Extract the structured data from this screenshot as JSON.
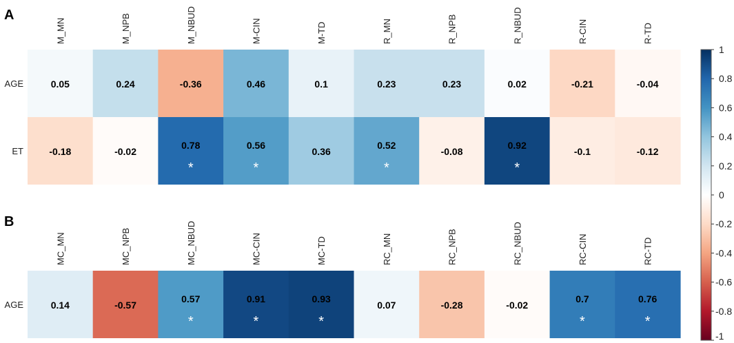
{
  "chart_data": [
    {
      "type": "heatmap",
      "panel_label": "A",
      "columns": [
        "M_MN",
        "M_NPB",
        "M_NBUD",
        "M-CIN",
        "M-TD",
        "R_MN",
        "R_NPB",
        "R_NBUD",
        "R-CIN",
        "R-TD"
      ],
      "rows": [
        {
          "label": "AGE",
          "values": [
            0.05,
            0.24,
            -0.36,
            0.46,
            0.1,
            0.23,
            0.23,
            0.02,
            -0.21,
            -0.04
          ],
          "significant": [
            false,
            false,
            false,
            false,
            false,
            false,
            false,
            false,
            false,
            false
          ]
        },
        {
          "label": "ET",
          "values": [
            -0.18,
            -0.02,
            0.78,
            0.56,
            0.36,
            0.52,
            -0.08,
            0.92,
            -0.1,
            -0.12
          ],
          "significant": [
            false,
            false,
            true,
            true,
            false,
            true,
            false,
            true,
            false,
            false
          ]
        }
      ]
    },
    {
      "type": "heatmap",
      "panel_label": "B",
      "columns": [
        "MC_MN",
        "MC_NPB",
        "MC_NBUD",
        "MC-CIN",
        "MC-TD",
        "RC_MN",
        "RC_NPB",
        "RC_NBUD",
        "RC-CIN",
        "RC-TD"
      ],
      "rows": [
        {
          "label": "AGE",
          "values": [
            0.14,
            -0.57,
            0.57,
            0.91,
            0.93,
            0.07,
            -0.28,
            -0.02,
            0.7,
            0.76
          ],
          "significant": [
            false,
            false,
            true,
            true,
            true,
            false,
            false,
            false,
            true,
            true
          ]
        }
      ]
    }
  ],
  "colorbar": {
    "ticks": [
      "1",
      "0.8",
      "0.6",
      "0.4",
      "0.2",
      "0",
      "-0.2",
      "-0.4",
      "-0.6",
      "-0.8",
      "-1"
    ],
    "tick_values": [
      1,
      0.8,
      0.6,
      0.4,
      0.2,
      0,
      -0.2,
      -0.4,
      -0.6,
      -0.8,
      -1
    ],
    "range": [
      -1,
      1
    ]
  },
  "significance_marker": "*"
}
